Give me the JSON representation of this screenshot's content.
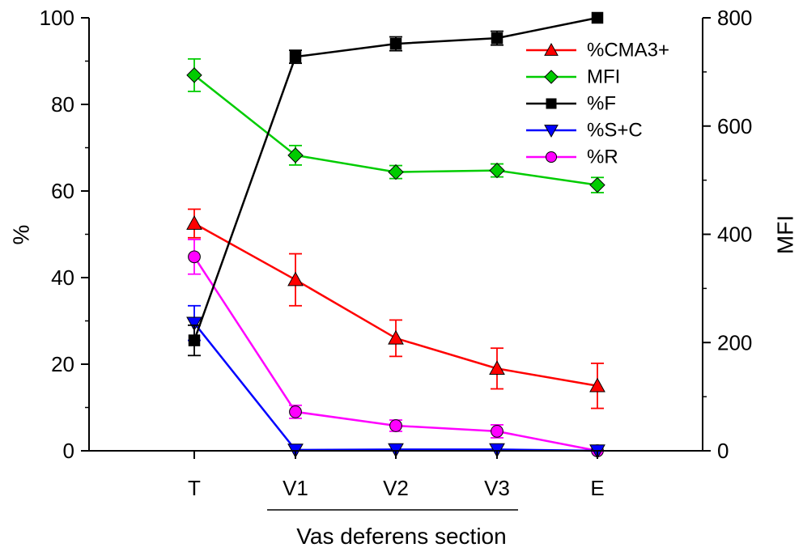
{
  "chart_data": {
    "type": "line",
    "title": "",
    "xlabel": "Vas deferens section",
    "ylabel": "%",
    "y2label": "MFI",
    "categories": [
      "T",
      "V1",
      "V2",
      "V3",
      "E"
    ],
    "ylim": [
      0,
      100
    ],
    "y2lim": [
      0,
      800
    ],
    "yticks": [
      "0",
      "20",
      "40",
      "60",
      "80",
      "100"
    ],
    "y2ticks": [
      "0",
      "200",
      "400",
      "600",
      "800"
    ],
    "legend_position": "top-right",
    "grid": false,
    "series": [
      {
        "name": "%CMA3+",
        "axis": "left",
        "color": "#ff0000",
        "marker": "triangle-up",
        "values": [
          52.5,
          39.5,
          26,
          19,
          15
        ],
        "errors": [
          3.3,
          6,
          4.2,
          4.7,
          5.2
        ]
      },
      {
        "name": "MFI",
        "axis": "right",
        "color": "#00cc00",
        "marker": "diamond",
        "values": [
          694,
          546,
          515,
          518,
          491
        ],
        "errors": [
          30,
          18,
          12,
          12,
          14
        ]
      },
      {
        "name": "%F",
        "axis": "left",
        "color": "#000000",
        "marker": "square",
        "values": [
          25.5,
          91,
          94,
          95.3,
          100
        ],
        "errors": [
          3.5,
          1.5,
          1.6,
          1.6,
          0
        ]
      },
      {
        "name": "%S+C",
        "axis": "left",
        "color": "#0000ff",
        "marker": "triangle-down",
        "values": [
          29.5,
          0.2,
          0.3,
          0.3,
          0
        ],
        "errors": [
          4,
          0,
          0,
          0,
          0
        ]
      },
      {
        "name": "%R",
        "axis": "left",
        "color": "#ff00ff",
        "marker": "circle",
        "values": [
          44.8,
          9,
          5.8,
          4.5,
          0
        ],
        "errors": [
          4,
          1.5,
          1.3,
          1.5,
          0
        ]
      }
    ]
  }
}
